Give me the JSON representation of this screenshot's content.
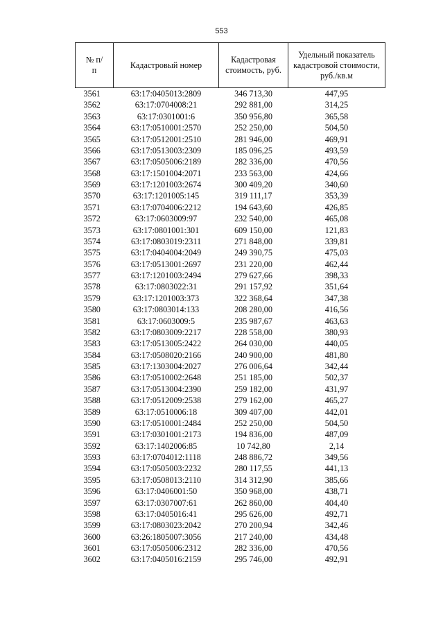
{
  "page_number": "553",
  "table": {
    "headers": [
      "№ п/п",
      "Кадастровый номер",
      "Кадастровая стоимость, руб.",
      "Удельный показатель кадастровой стоимости, руб./кв.м"
    ],
    "rows": [
      [
        "3561",
        "63:17:0405013:2809",
        "346 713,30",
        "447,95"
      ],
      [
        "3562",
        "63:17:0704008:21",
        "292 881,00",
        "314,25"
      ],
      [
        "3563",
        "63:17:0301001:6",
        "350 956,80",
        "365,58"
      ],
      [
        "3564",
        "63:17:0510001:2570",
        "252 250,00",
        "504,50"
      ],
      [
        "3565",
        "63:17:0512001:2510",
        "281 946,00",
        "469,91"
      ],
      [
        "3566",
        "63:17:0513003:2309",
        "185 096,25",
        "493,59"
      ],
      [
        "3567",
        "63:17:0505006:2189",
        "282 336,00",
        "470,56"
      ],
      [
        "3568",
        "63:17:1501004:2071",
        "233 563,00",
        "424,66"
      ],
      [
        "3569",
        "63:17:1201003:2674",
        "300 409,20",
        "340,60"
      ],
      [
        "3570",
        "63:17:1201005:145",
        "319 111,17",
        "353,39"
      ],
      [
        "3571",
        "63:17:0704006:2212",
        "194 643,60",
        "426,85"
      ],
      [
        "3572",
        "63:17:0603009:97",
        "232 540,00",
        "465,08"
      ],
      [
        "3573",
        "63:17:0801001:301",
        "609 150,00",
        "121,83"
      ],
      [
        "3574",
        "63:17:0803019:2311",
        "271 848,00",
        "339,81"
      ],
      [
        "3575",
        "63:17:0404004:2049",
        "249 390,75",
        "475,03"
      ],
      [
        "3576",
        "63:17:0513001:2697",
        "231 220,00",
        "462,44"
      ],
      [
        "3577",
        "63:17:1201003:2494",
        "279 627,66",
        "398,33"
      ],
      [
        "3578",
        "63:17:0803022:31",
        "291 157,92",
        "351,64"
      ],
      [
        "3579",
        "63:17:1201003:373",
        "322 368,64",
        "347,38"
      ],
      [
        "3580",
        "63:17:0803014:133",
        "208 280,00",
        "416,56"
      ],
      [
        "3581",
        "63:17:0603009:5",
        "235 987,67",
        "463,63"
      ],
      [
        "3582",
        "63:17:0803009:2217",
        "228 558,00",
        "380,93"
      ],
      [
        "3583",
        "63:17:0513005:2422",
        "264 030,00",
        "440,05"
      ],
      [
        "3584",
        "63:17:0508020:2166",
        "240 900,00",
        "481,80"
      ],
      [
        "3585",
        "63:17:1303004:2027",
        "276 006,64",
        "342,44"
      ],
      [
        "3586",
        "63:17:0510002:2648",
        "251 185,00",
        "502,37"
      ],
      [
        "3587",
        "63:17:0513004:2390",
        "259 182,00",
        "431,97"
      ],
      [
        "3588",
        "63:17:0512009:2538",
        "279 162,00",
        "465,27"
      ],
      [
        "3589",
        "63:17:0510006:18",
        "309 407,00",
        "442,01"
      ],
      [
        "3590",
        "63:17:0510001:2484",
        "252 250,00",
        "504,50"
      ],
      [
        "3591",
        "63:17:0301001:2173",
        "194 836,00",
        "487,09"
      ],
      [
        "3592",
        "63:17:1402006:85",
        "10 742,80",
        "2,14"
      ],
      [
        "3593",
        "63:17:0704012:1118",
        "248 886,72",
        "349,56"
      ],
      [
        "3594",
        "63:17:0505003:2232",
        "280 117,55",
        "441,13"
      ],
      [
        "3595",
        "63:17:0508013:2110",
        "314 312,90",
        "385,66"
      ],
      [
        "3596",
        "63:17:0406001:50",
        "350 968,00",
        "438,71"
      ],
      [
        "3597",
        "63:17:0307007:61",
        "262 860,00",
        "404,40"
      ],
      [
        "3598",
        "63:17:0405016:41",
        "295 626,00",
        "492,71"
      ],
      [
        "3599",
        "63:17:0803023:2042",
        "270 200,94",
        "342,46"
      ],
      [
        "3600",
        "63:26:1805007:3056",
        "217 240,00",
        "434,48"
      ],
      [
        "3601",
        "63:17:0505006:2312",
        "282 336,00",
        "470,56"
      ],
      [
        "3602",
        "63:17:0405016:2159",
        "295 746,00",
        "492,91"
      ]
    ]
  }
}
